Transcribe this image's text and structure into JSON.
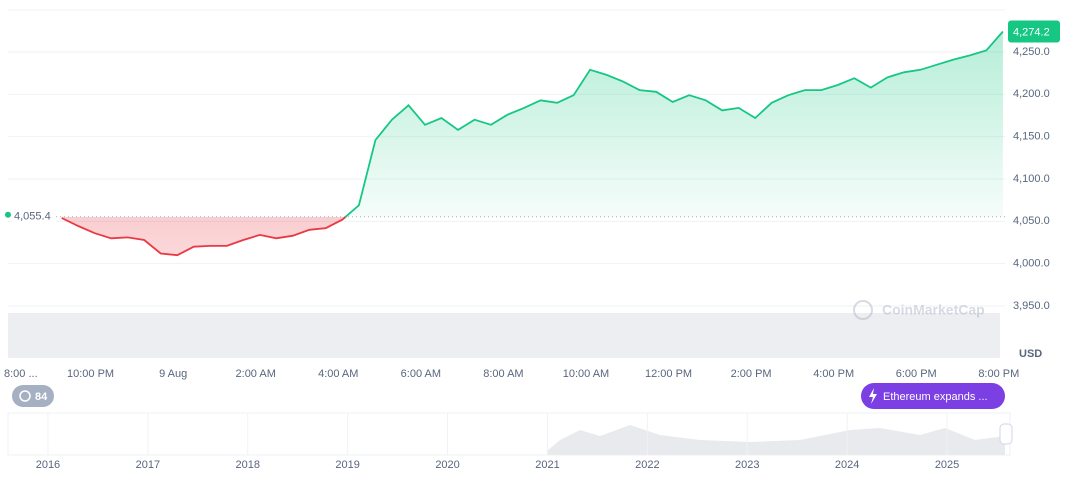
{
  "chart_data": {
    "type": "line",
    "x": [
      21.3,
      21.7,
      22.1,
      22.5,
      22.9,
      23.3,
      23.7,
      24.1,
      24.5,
      24.9,
      25.3,
      25.7,
      26.1,
      26.5,
      26.9,
      27.3,
      27.7,
      28.1,
      28.5,
      28.9,
      29.3,
      29.7,
      30.1,
      30.5,
      30.9,
      31.3,
      31.7,
      32.1,
      32.5,
      32.9,
      33.3,
      33.7,
      34.1,
      34.5,
      34.9,
      35.3,
      35.7,
      36.1,
      36.5,
      36.9,
      37.3,
      37.7,
      38.1,
      38.5,
      38.9,
      39.3,
      39.7,
      40.1,
      40.5,
      40.9,
      41.3,
      41.7,
      42.1,
      42.5,
      42.9,
      43.3,
      43.7,
      44.1
    ],
    "values": [
      4054,
      4044.5,
      4036,
      4030,
      4031,
      4028,
      4012,
      4010,
      4020,
      4021,
      4021,
      4028,
      4034,
      4030,
      4033,
      4040,
      4042,
      4052,
      4069,
      4146,
      4170,
      4187,
      4164,
      4172,
      4158,
      4170,
      4164,
      4176,
      4184,
      4193,
      4190,
      4199,
      4229,
      4223,
      4215,
      4205,
      4203,
      4191,
      4199,
      4193,
      4181,
      4184,
      4172,
      4190,
      4199,
      4205,
      4205,
      4211,
      4219,
      4208,
      4220,
      4226,
      4229,
      4235,
      4241,
      4246,
      4252,
      4274.2
    ],
    "colors": {
      "up": "#16c784",
      "down": "#ea3943"
    },
    "baseline": {
      "value": 4055.4,
      "label": "4,055.4"
    },
    "current": {
      "value": 4274.2,
      "label": "4,274.2"
    },
    "xlim": [
      20,
      44.15
    ],
    "ylim": [
      3888.6,
      4299.6
    ],
    "xticks": [
      {
        "value": 20,
        "label": "8:00 ..."
      },
      {
        "value": 22,
        "label": "10:00 PM"
      },
      {
        "value": 24,
        "label": "9 Aug"
      },
      {
        "value": 26,
        "label": "2:00 AM"
      },
      {
        "value": 28,
        "label": "4:00 AM"
      },
      {
        "value": 30,
        "label": "6:00 AM"
      },
      {
        "value": 32,
        "label": "8:00 AM"
      },
      {
        "value": 34,
        "label": "10:00 AM"
      },
      {
        "value": 36,
        "label": "12:00 PM"
      },
      {
        "value": 38,
        "label": "2:00 PM"
      },
      {
        "value": 40,
        "label": "4:00 PM"
      },
      {
        "value": 42,
        "label": "6:00 PM"
      },
      {
        "value": 44,
        "label": "8:00 PM"
      }
    ],
    "yticks": [
      {
        "value": 3950,
        "label": "3,950.0"
      },
      {
        "value": 4000,
        "label": "4,000.0"
      },
      {
        "value": 4050,
        "label": "4,050.0"
      },
      {
        "value": 4100,
        "label": "4,100.0"
      },
      {
        "value": 4150,
        "label": "4,150.0"
      },
      {
        "value": 4200,
        "label": "4,200.0"
      },
      {
        "value": 4250,
        "label": "4,250.0"
      }
    ],
    "grid": true,
    "unit": "USD",
    "watermark": "CoinMarketCap",
    "events_count": 84,
    "event_label": "Ethereum expands ...",
    "overview": {
      "xlim": [
        2015.6,
        2025.63
      ],
      "xticks": [
        2016,
        2017,
        2018,
        2019,
        2020,
        2021,
        2022,
        2023,
        2024,
        2025
      ]
    }
  }
}
